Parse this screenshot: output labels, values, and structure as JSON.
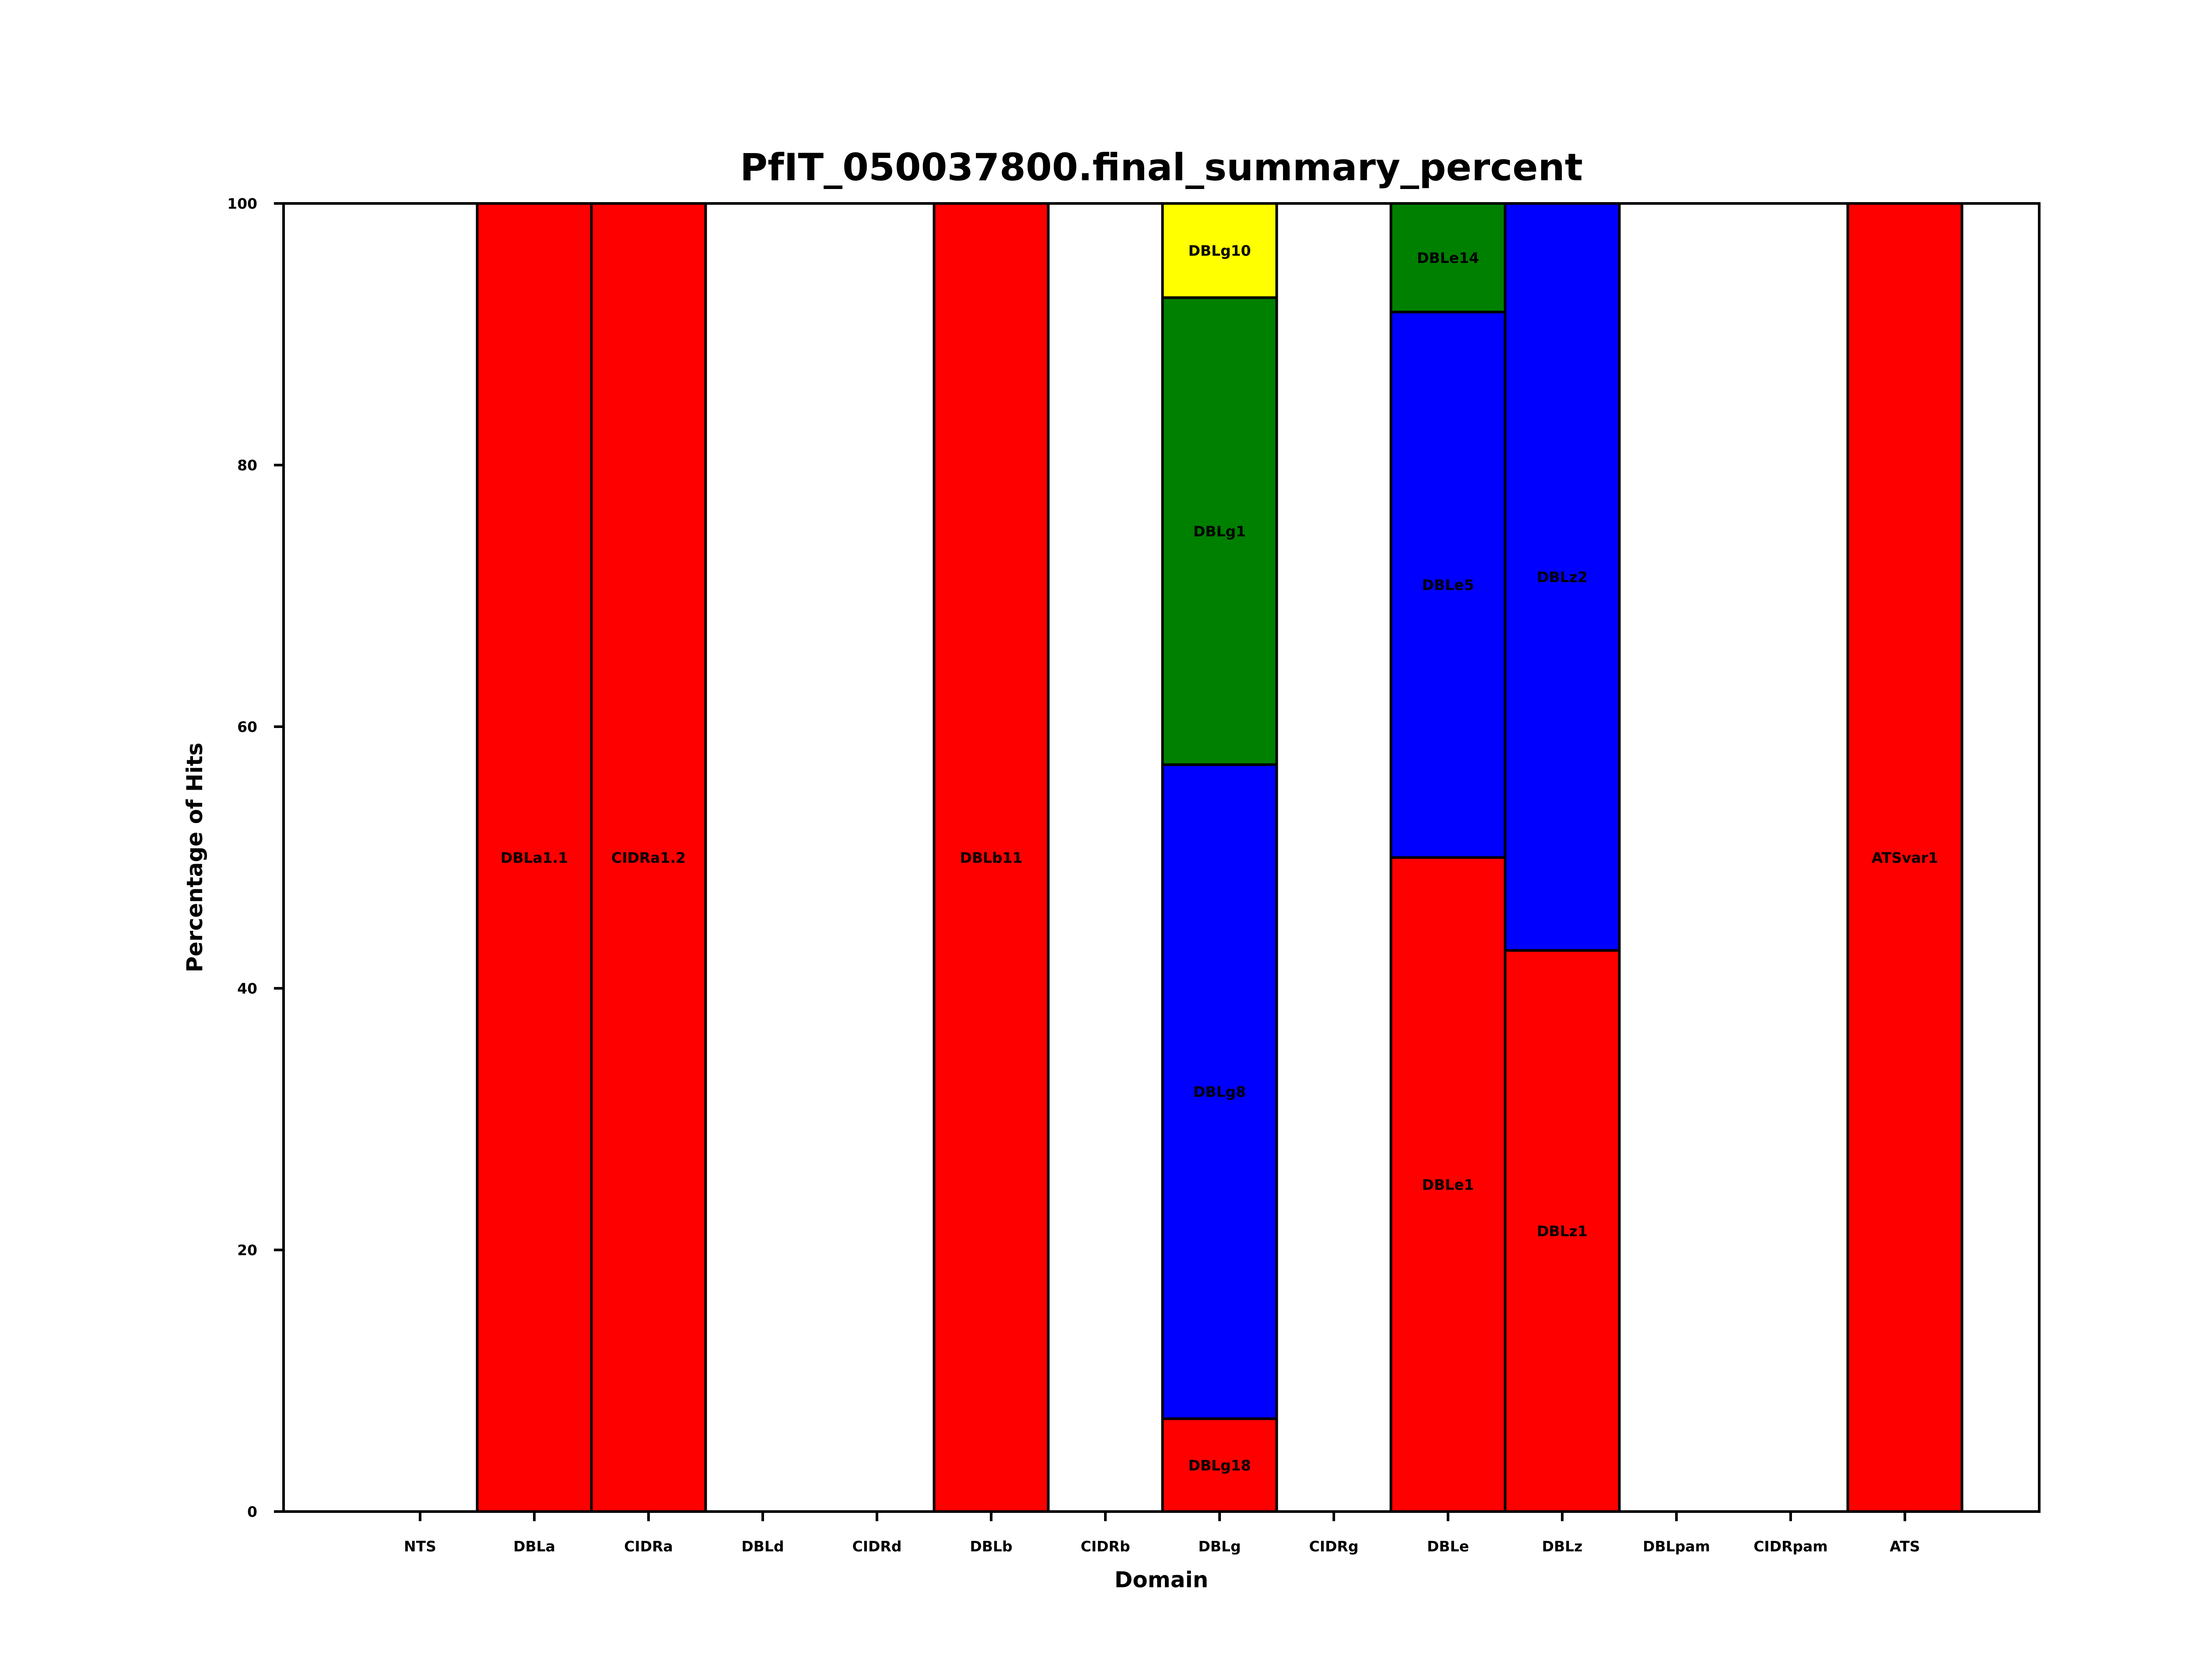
{
  "chart_data": {
    "type": "bar",
    "stacked": true,
    "title": "PfIT_050037800.final_summary_percent",
    "xlabel": "Domain",
    "ylabel": "Percentage of Hits",
    "ylim": [
      0,
      100
    ],
    "yticks": [
      0,
      20,
      40,
      60,
      80,
      100
    ],
    "grid": false,
    "categories": [
      "NTS",
      "DBLa",
      "CIDRa",
      "DBLd",
      "CIDRd",
      "DBLb",
      "CIDRb",
      "DBLg",
      "CIDRg",
      "DBLe",
      "DBLz",
      "DBLpam",
      "CIDRpam",
      "ATS"
    ],
    "colors": {
      "red": "#ff0000",
      "blue": "#0000ff",
      "green": "#008000",
      "yellow": "#ffff00",
      "edge": "#000000"
    },
    "bars": [
      {
        "category": "NTS",
        "segments": []
      },
      {
        "category": "DBLa",
        "segments": [
          {
            "label": "DBLa1.1",
            "value": 100,
            "color": "#ff0000"
          }
        ]
      },
      {
        "category": "CIDRa",
        "segments": [
          {
            "label": "CIDRa1.2",
            "value": 100,
            "color": "#ff0000"
          }
        ]
      },
      {
        "category": "DBLd",
        "segments": []
      },
      {
        "category": "CIDRd",
        "segments": []
      },
      {
        "category": "DBLb",
        "segments": [
          {
            "label": "DBLb11",
            "value": 100,
            "color": "#ff0000"
          }
        ]
      },
      {
        "category": "CIDRb",
        "segments": []
      },
      {
        "category": "DBLg",
        "segments": [
          {
            "label": "DBLg18",
            "value": 7.1,
            "color": "#ff0000"
          },
          {
            "label": "DBLg8",
            "value": 50.0,
            "color": "#0000ff"
          },
          {
            "label": "DBLg1",
            "value": 35.7,
            "color": "#008000"
          },
          {
            "label": "DBLg10",
            "value": 7.2,
            "color": "#ffff00"
          }
        ]
      },
      {
        "category": "CIDRg",
        "segments": []
      },
      {
        "category": "DBLe",
        "segments": [
          {
            "label": "DBLe1",
            "value": 50.0,
            "color": "#ff0000"
          },
          {
            "label": "DBLe5",
            "value": 41.7,
            "color": "#0000ff"
          },
          {
            "label": "DBLe14",
            "value": 8.3,
            "color": "#008000"
          }
        ]
      },
      {
        "category": "DBLz",
        "segments": [
          {
            "label": "DBLz1",
            "value": 42.9,
            "color": "#ff0000"
          },
          {
            "label": "DBLz2",
            "value": 57.1,
            "color": "#0000ff"
          }
        ]
      },
      {
        "category": "DBLpam",
        "segments": []
      },
      {
        "category": "CIDRpam",
        "segments": []
      },
      {
        "category": "ATS",
        "segments": [
          {
            "label": "ATSvar1",
            "value": 100,
            "color": "#ff0000"
          }
        ]
      }
    ]
  }
}
